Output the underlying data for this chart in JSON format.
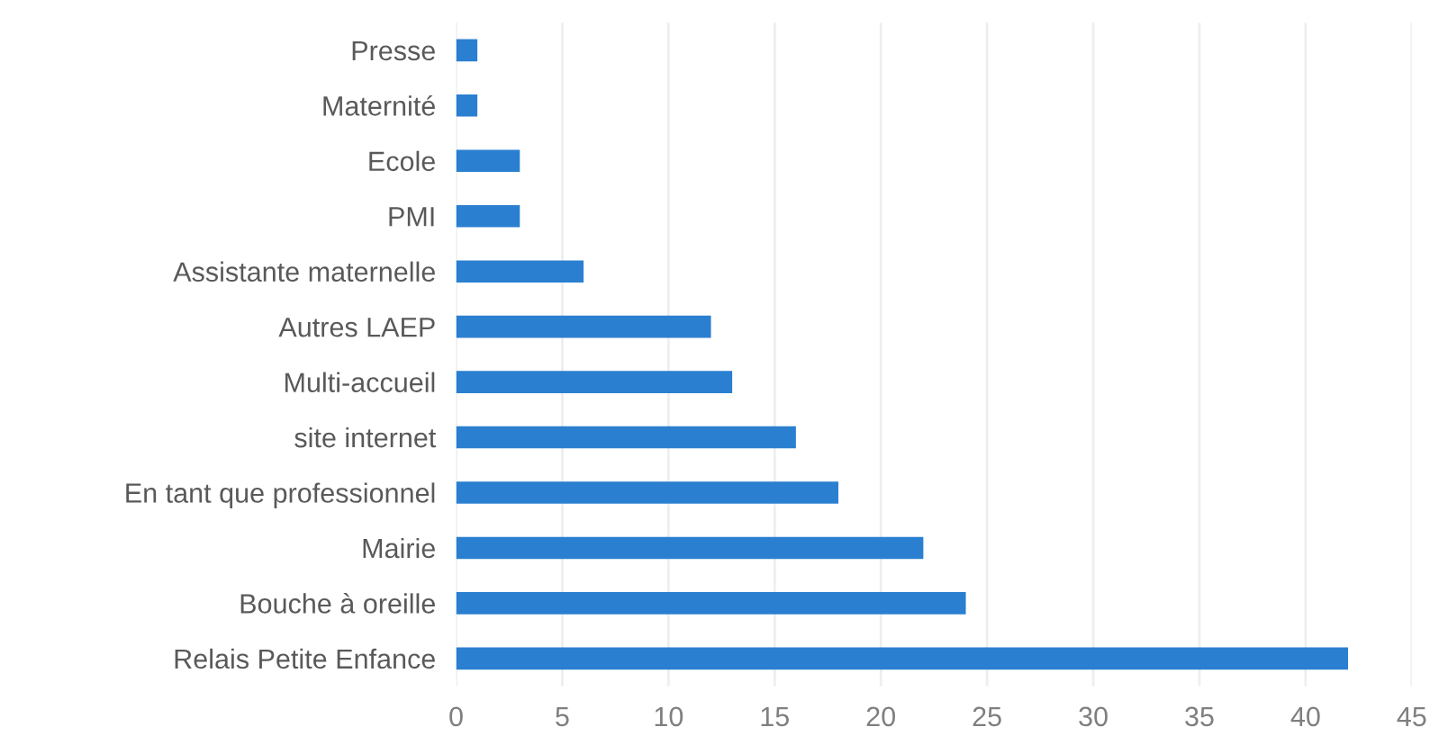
{
  "chart_data": {
    "type": "bar",
    "orientation": "horizontal",
    "categories": [
      "Presse",
      "Maternité",
      "Ecole",
      "PMI",
      "Assistante maternelle",
      "Autres LAEP",
      "Multi-accueil",
      "site internet",
      "En tant que professionnel",
      "Mairie",
      "Bouche à oreille",
      "Relais Petite Enfance"
    ],
    "values": [
      1,
      1,
      3,
      3,
      6,
      12,
      13,
      16,
      18,
      22,
      24,
      42
    ],
    "color": "#2a7fd0",
    "xlim": [
      0,
      45
    ],
    "xticks": [
      0,
      5,
      10,
      15,
      20,
      25,
      30,
      35,
      40,
      45
    ],
    "grid": "x"
  }
}
